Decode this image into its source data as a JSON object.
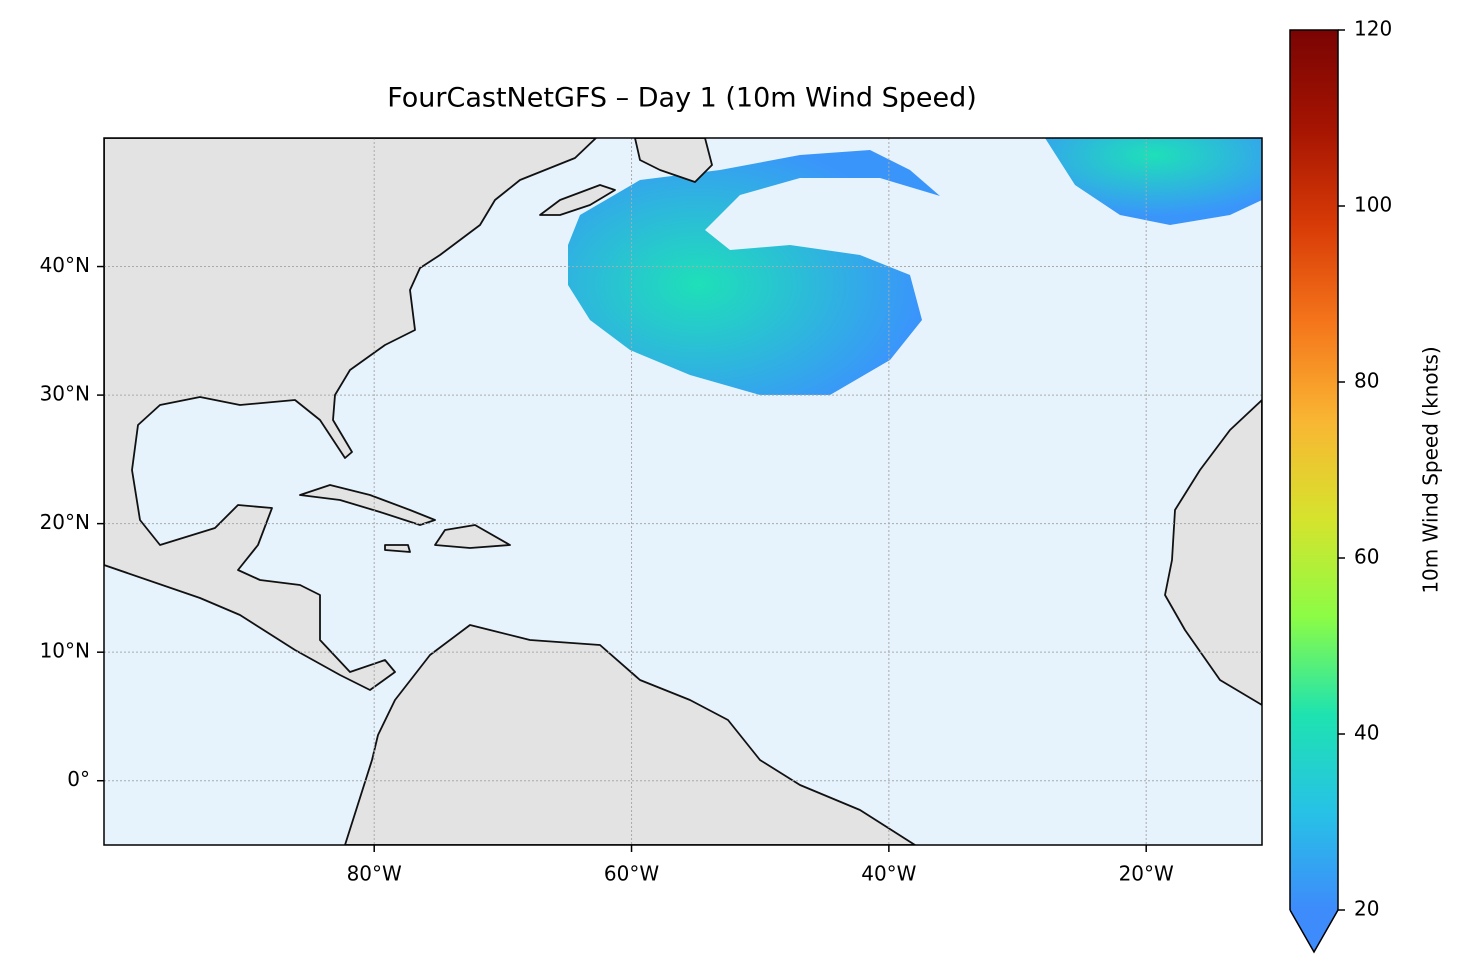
{
  "title": "FourCastNetGFS – Day 1 (10m Wind Speed)",
  "map": {
    "xlim": [
      -101,
      -11
    ],
    "ylim": [
      -5,
      50
    ],
    "xticks": [
      {
        "value": -80,
        "label": "80°W"
      },
      {
        "value": -60,
        "label": "60°W"
      },
      {
        "value": -40,
        "label": "40°W"
      },
      {
        "value": -20,
        "label": "20°W"
      }
    ],
    "yticks": [
      {
        "value": 0,
        "label": "0°"
      },
      {
        "value": 10,
        "label": "10°N"
      },
      {
        "value": 20,
        "label": "20°N"
      },
      {
        "value": 30,
        "label": "30°N"
      },
      {
        "value": 40,
        "label": "40°N"
      }
    ],
    "grid": true
  },
  "colorbar": {
    "label": "10m Wind Speed (knots)",
    "lim": [
      20,
      120
    ],
    "ticks": [
      20,
      40,
      60,
      80,
      100,
      120
    ],
    "colors": [
      "#3e8bfb",
      "#27c2e6",
      "#1ee3b0",
      "#8cfc45",
      "#d6e32d",
      "#f9b633",
      "#f5761b",
      "#d83b07",
      "#a51402",
      "#7a0403"
    ]
  }
}
